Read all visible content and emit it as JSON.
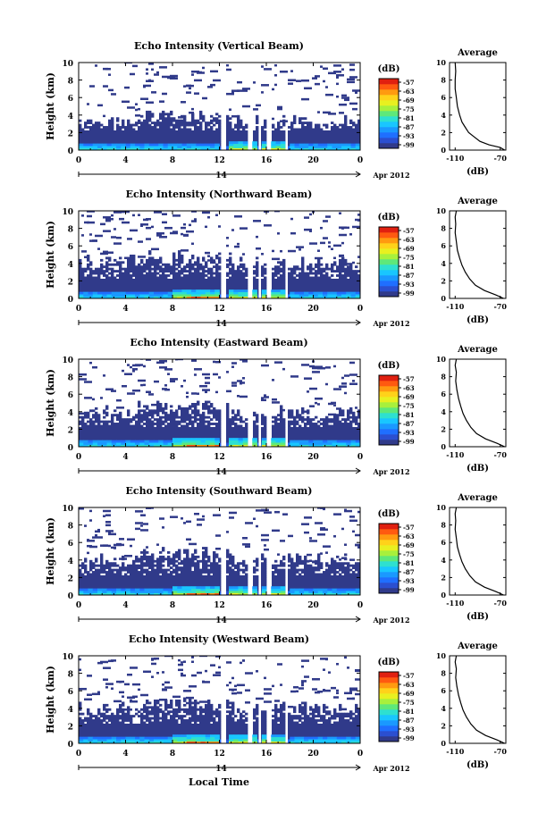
{
  "figure": {
    "month_label": "Apr 2012",
    "xlabel": "Local Time",
    "date_center_label": "14"
  },
  "colorbar": {
    "unit_label": "(dB)",
    "ticks": [
      "-57",
      "-63",
      "-69",
      "-75",
      "-81",
      "-87",
      "-93",
      "-99"
    ],
    "colors": [
      "#303a8a",
      "#2b4fd0",
      "#1f6fff",
      "#1a99ff",
      "#19c6ff",
      "#2ee0d0",
      "#5ee87a",
      "#a8f03c",
      "#e8f020",
      "#ffd21a",
      "#ff9a10",
      "#ff5a10",
      "#e02010"
    ]
  },
  "chart_data": [
    {
      "type": "heatmap",
      "title": "Echo Intensity (Vertical Beam)",
      "xlabel": "Local Time",
      "ylabel": "Height (km)",
      "xlim": [
        0,
        24
      ],
      "ylim": [
        0,
        10
      ],
      "x_ticks": [
        "0",
        "4",
        "8",
        "12",
        "16",
        "20",
        "0"
      ],
      "y_ticks": [
        "0",
        "2",
        "4",
        "6",
        "8",
        "10"
      ],
      "colorbar_range_db": [
        -99,
        -57
      ],
      "dense_echo_top_km": 3.2,
      "strong_echo_hours": [
        12,
        18
      ],
      "gap_hours": [
        12.4,
        14.6,
        15.4,
        16.2,
        17.7
      ],
      "average_profile": {
        "title": "Average",
        "xlabel": "(dB)",
        "x_ticks": [
          "-110",
          "-70"
        ],
        "xlim": [
          -115,
          -65
        ],
        "y_ticks": [
          "0",
          "2",
          "4",
          "6",
          "8",
          "10"
        ],
        "points": [
          [
            -66,
            0
          ],
          [
            -70,
            0.3
          ],
          [
            -80,
            0.6
          ],
          [
            -88,
            1.0
          ],
          [
            -93,
            1.5
          ],
          [
            -98,
            2.0
          ],
          [
            -101,
            2.6
          ],
          [
            -104,
            3.2
          ],
          [
            -106,
            4.0
          ],
          [
            -108,
            5.0
          ],
          [
            -109,
            6.0
          ],
          [
            -110,
            7.0
          ],
          [
            -110,
            8.0
          ],
          [
            -109.5,
            9.0
          ],
          [
            -110,
            10
          ]
        ]
      }
    },
    {
      "type": "heatmap",
      "title": "Echo Intensity (Northward Beam)",
      "xlabel": "Local Time",
      "ylabel": "Height (km)",
      "xlim": [
        0,
        24
      ],
      "ylim": [
        0,
        10
      ],
      "x_ticks": [
        "0",
        "4",
        "8",
        "12",
        "16",
        "20",
        "0"
      ],
      "y_ticks": [
        "0",
        "2",
        "4",
        "6",
        "8",
        "10"
      ],
      "colorbar_range_db": [
        -99,
        -57
      ],
      "dense_echo_top_km": 4.0,
      "strong_echo_hours": [
        8,
        18
      ],
      "gap_hours": [
        12.4,
        14.6,
        15.4,
        16.2,
        17.7
      ],
      "average_profile": {
        "title": "Average",
        "xlabel": "(dB)",
        "x_ticks": [
          "-110",
          "-70"
        ],
        "xlim": [
          -115,
          -65
        ],
        "y_ticks": [
          "0",
          "2",
          "4",
          "6",
          "8",
          "10"
        ],
        "points": [
          [
            -67,
            0
          ],
          [
            -74,
            0.4
          ],
          [
            -84,
            0.9
          ],
          [
            -92,
            1.5
          ],
          [
            -97,
            2.2
          ],
          [
            -101,
            3.0
          ],
          [
            -104,
            3.8
          ],
          [
            -106,
            4.6
          ],
          [
            -108,
            5.5
          ],
          [
            -109,
            6.5
          ],
          [
            -110,
            7.5
          ],
          [
            -109.5,
            8.5
          ],
          [
            -110,
            9.3
          ],
          [
            -109,
            10
          ]
        ]
      }
    },
    {
      "type": "heatmap",
      "title": "Echo Intensity (Eastward Beam)",
      "xlabel": "Local Time",
      "ylabel": "Height (km)",
      "xlim": [
        0,
        24
      ],
      "ylim": [
        0,
        10
      ],
      "x_ticks": [
        "0",
        "4",
        "8",
        "12",
        "16",
        "20",
        "0"
      ],
      "y_ticks": [
        "0",
        "2",
        "4",
        "6",
        "8",
        "10"
      ],
      "colorbar_range_db": [
        -99,
        -57
      ],
      "dense_echo_top_km": 3.8,
      "strong_echo_hours": [
        8,
        18
      ],
      "gap_hours": [
        12.4,
        14.6,
        15.4,
        16.2,
        17.7
      ],
      "average_profile": {
        "title": "Average",
        "xlabel": "(dB)",
        "x_ticks": [
          "-110",
          "-70"
        ],
        "xlim": [
          -115,
          -65
        ],
        "y_ticks": [
          "0",
          "2",
          "4",
          "6",
          "8",
          "10"
        ],
        "points": [
          [
            -66,
            0
          ],
          [
            -73,
            0.4
          ],
          [
            -83,
            0.9
          ],
          [
            -91,
            1.5
          ],
          [
            -96,
            2.2
          ],
          [
            -100,
            3.0
          ],
          [
            -103,
            3.8
          ],
          [
            -105,
            4.6
          ],
          [
            -107,
            5.5
          ],
          [
            -108.5,
            6.5
          ],
          [
            -109.5,
            7.5
          ],
          [
            -109,
            8.5
          ],
          [
            -110,
            9.3
          ],
          [
            -109,
            10
          ]
        ]
      }
    },
    {
      "type": "heatmap",
      "title": "Echo Intensity (Southward Beam)",
      "xlabel": "Local Time",
      "ylabel": "Height (km)",
      "xlim": [
        0,
        24
      ],
      "ylim": [
        0,
        10
      ],
      "x_ticks": [
        "0",
        "4",
        "8",
        "12",
        "16",
        "20",
        "0"
      ],
      "y_ticks": [
        "0",
        "2",
        "4",
        "6",
        "8",
        "10"
      ],
      "colorbar_range_db": [
        -99,
        -57
      ],
      "dense_echo_top_km": 4.0,
      "strong_echo_hours": [
        8,
        18
      ],
      "gap_hours": [
        12.4,
        14.6,
        15.4,
        16.2,
        17.7
      ],
      "average_profile": {
        "title": "Average",
        "xlabel": "(dB)",
        "x_ticks": [
          "-110",
          "-70"
        ],
        "xlim": [
          -115,
          -65
        ],
        "y_ticks": [
          "0",
          "2",
          "4",
          "6",
          "8",
          "10"
        ],
        "points": [
          [
            -67,
            0
          ],
          [
            -74,
            0.4
          ],
          [
            -84,
            0.9
          ],
          [
            -92,
            1.5
          ],
          [
            -97,
            2.2
          ],
          [
            -101,
            3.0
          ],
          [
            -104,
            3.8
          ],
          [
            -106,
            4.6
          ],
          [
            -108,
            5.5
          ],
          [
            -109,
            6.5
          ],
          [
            -110,
            7.5
          ],
          [
            -109.5,
            8.5
          ],
          [
            -110,
            9.3
          ],
          [
            -109,
            10
          ]
        ]
      }
    },
    {
      "type": "heatmap",
      "title": "Echo Intensity (Westward Beam)",
      "xlabel": "Local Time",
      "ylabel": "Height (km)",
      "xlim": [
        0,
        24
      ],
      "ylim": [
        0,
        10
      ],
      "x_ticks": [
        "0",
        "4",
        "8",
        "12",
        "16",
        "20",
        "0"
      ],
      "y_ticks": [
        "0",
        "2",
        "4",
        "6",
        "8",
        "10"
      ],
      "colorbar_range_db": [
        -99,
        -57
      ],
      "dense_echo_top_km": 3.8,
      "strong_echo_hours": [
        8,
        18
      ],
      "gap_hours": [
        12.4,
        14.6,
        15.4,
        16.2,
        17.7
      ],
      "average_profile": {
        "title": "Average",
        "xlabel": "(dB)",
        "x_ticks": [
          "-110",
          "-70"
        ],
        "xlim": [
          -115,
          -65
        ],
        "y_ticks": [
          "0",
          "2",
          "4",
          "6",
          "8",
          "10"
        ],
        "points": [
          [
            -66,
            0
          ],
          [
            -73,
            0.4
          ],
          [
            -83,
            0.9
          ],
          [
            -91,
            1.5
          ],
          [
            -96,
            2.2
          ],
          [
            -100,
            3.0
          ],
          [
            -103,
            3.8
          ],
          [
            -105,
            4.6
          ],
          [
            -107,
            5.5
          ],
          [
            -108.5,
            6.5
          ],
          [
            -109.5,
            7.5
          ],
          [
            -109,
            8.5
          ],
          [
            -110,
            9.3
          ],
          [
            -109,
            10
          ]
        ]
      }
    }
  ]
}
